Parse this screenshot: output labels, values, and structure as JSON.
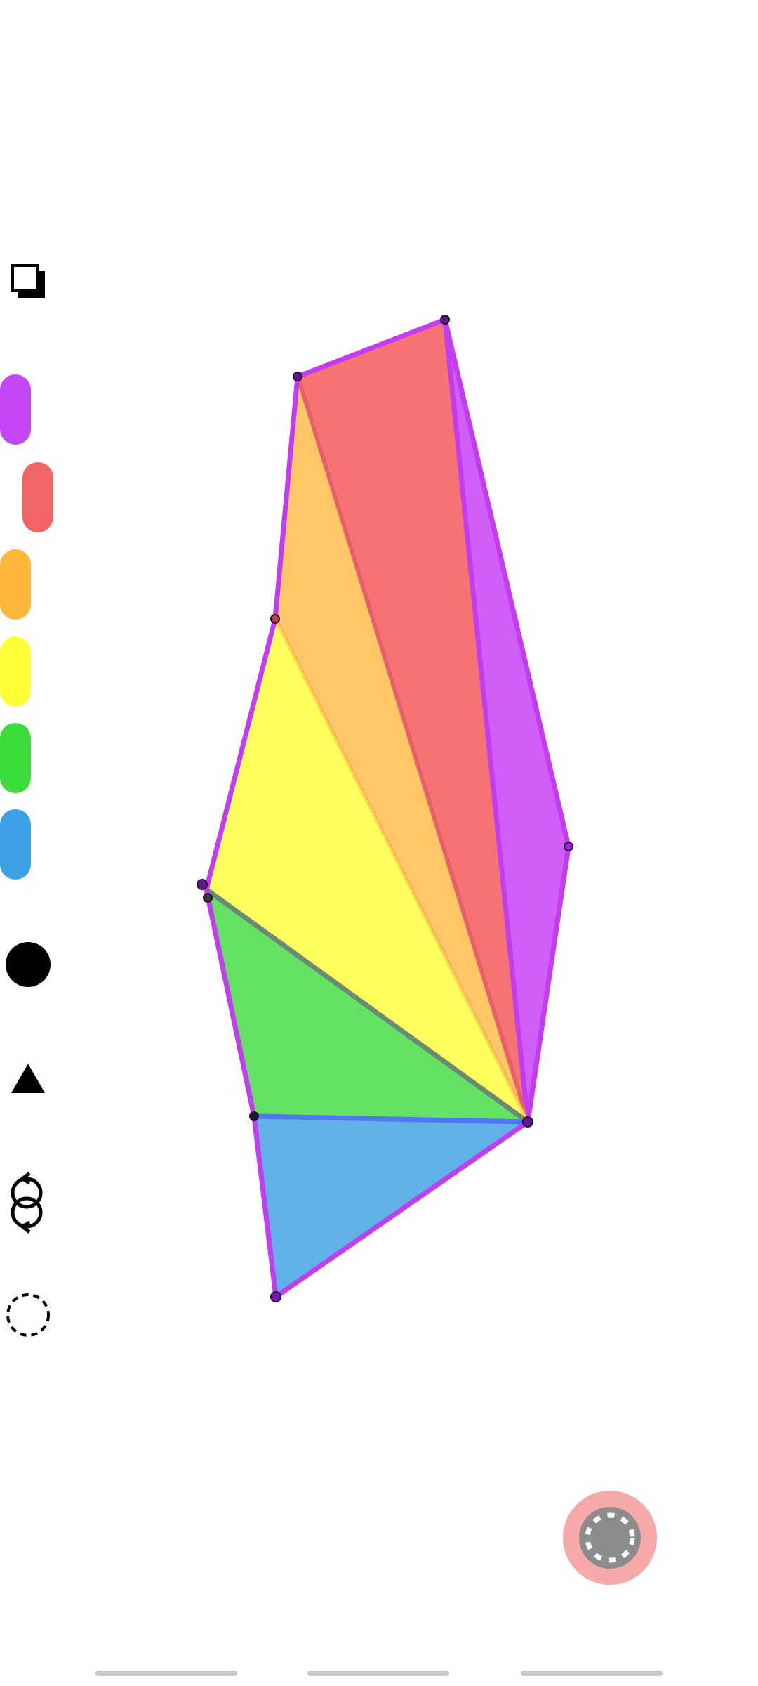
{
  "toolbar": {
    "icons": [
      {
        "name": "duplicate-icon"
      },
      {
        "name": "circle-shape-icon"
      },
      {
        "name": "triangle-shape-icon"
      },
      {
        "name": "loop-icon"
      },
      {
        "name": "dashed-circle-icon"
      }
    ],
    "palette": [
      {
        "name": "purple",
        "color": "#c447f5"
      },
      {
        "name": "red",
        "color": "#f26565"
      },
      {
        "name": "orange",
        "color": "#ffb73a"
      },
      {
        "name": "yellow",
        "color": "#ffff3a"
      },
      {
        "name": "green",
        "color": "#3ddc3d"
      },
      {
        "name": "blue",
        "color": "#3ba0e6"
      }
    ],
    "selected_color": "red"
  },
  "drawing": {
    "regions": [
      {
        "name": "red-region",
        "fill": "#f57373"
      },
      {
        "name": "purple-region",
        "fill": "#d05ff7"
      },
      {
        "name": "orange-region",
        "fill": "#ffc34d"
      },
      {
        "name": "yellow-region",
        "fill": "#ffff4d"
      },
      {
        "name": "green-region",
        "fill": "#5fe25f"
      },
      {
        "name": "blue-region",
        "fill": "#5aaae6"
      }
    ],
    "outline_color": "#c43cf0"
  },
  "fab": {
    "name": "settings-fab",
    "color": "#f7a9a9",
    "icon": "gear-icon"
  },
  "navigation": {
    "segments": 3
  }
}
